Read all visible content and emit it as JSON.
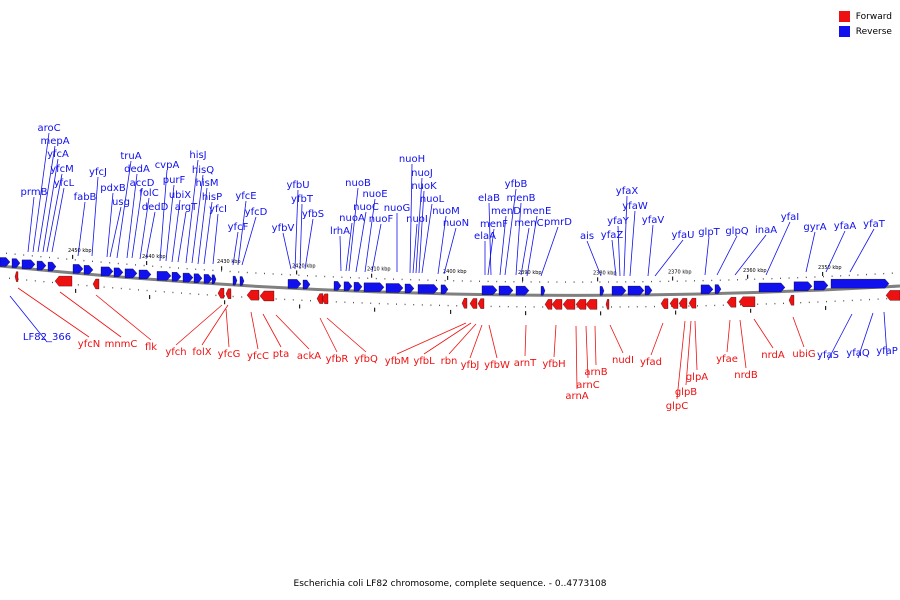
{
  "legend": {
    "forward_label": "Forward",
    "reverse_label": "Reverse",
    "forward_color": "#ee1111",
    "reverse_color": "#1111ee"
  },
  "caption": "Escherichia coli LF82 chromosome, complete sequence. - 0..4773108",
  "scale": [
    "2450 kbp",
    "2440 kbp",
    "2430 kbp",
    "2420 kbp",
    "2410 kbp",
    "2400 kbp",
    "2390 kbp",
    "2380 kbp",
    "2370 kbp",
    "2360 kbp",
    "2350 kbp"
  ],
  "reverse_genes": [
    "prmB",
    "aroC",
    "mepA",
    "yfcA",
    "yfcM",
    "yfcL",
    "fabB",
    "yfcJ",
    "pdxB",
    "usg",
    "truA",
    "dedA",
    "accD",
    "folC",
    "dedD",
    "cvpA",
    "purF",
    "ubiX",
    "argT",
    "hisJ",
    "hisQ",
    "hisM",
    "hisP",
    "yfcI",
    "yfcF",
    "yfcE",
    "yfcD",
    "yfbV",
    "yfbU",
    "yfbT",
    "yfbS",
    "lrhA",
    "nuoA",
    "nuoB",
    "nuoC",
    "nuoE",
    "nuoF",
    "nuoG",
    "nuoH",
    "nuoI",
    "nuoJ",
    "nuoK",
    "nuoL",
    "nuoM",
    "nuoN",
    "elaA",
    "menF",
    "elaB",
    "yfbB",
    "menD",
    "menB",
    "menC",
    "menE",
    "pmrD",
    "ais",
    "yfaZ",
    "yfaY",
    "yfaX",
    "yfaW",
    "yfaV",
    "yfaU",
    "glpT",
    "glpQ",
    "inaA",
    "yfaI",
    "gyrA",
    "yfaA",
    "yfaT",
    "LF82_366",
    "yfaS",
    "yfaQ",
    "yfaP"
  ],
  "forward_genes": [
    "yfcN",
    "mnmC",
    "flk",
    "yfch",
    "folX",
    "yfcG",
    "yfcC",
    "pta",
    "ackA",
    "yfbR",
    "yfbQ",
    "yfbM",
    "yfbL",
    "rbn",
    "yfbJ",
    "yfbW",
    "arnT",
    "yfbH",
    "arnA",
    "arnC",
    "arnB",
    "nudI",
    "yfad",
    "glpC",
    "glpB",
    "glpA",
    "yfae",
    "nrdB",
    "nrdA",
    "ubiG"
  ]
}
